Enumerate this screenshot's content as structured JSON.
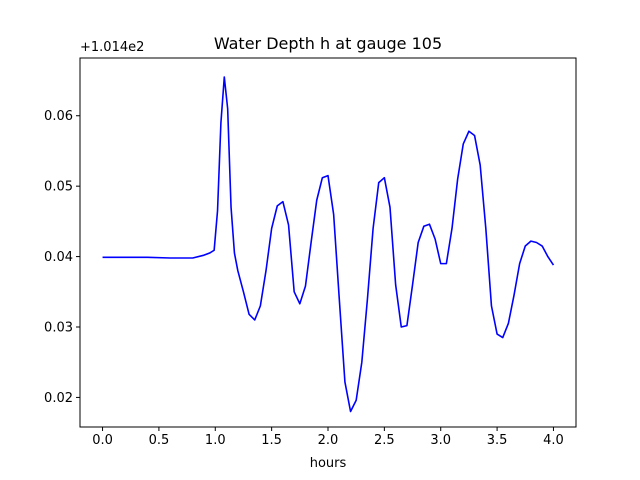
{
  "chart_data": {
    "type": "line",
    "title": "Water Depth h at gauge 105",
    "xlabel": "hours",
    "ylabel": "",
    "y_offset_label": "+1.014e2",
    "y_offset": 101.4,
    "xlim": [
      -0.2,
      4.2
    ],
    "ylim": [
      0.0158,
      0.0682
    ],
    "x_ticks": [
      0.0,
      0.5,
      1.0,
      1.5,
      2.0,
      2.5,
      3.0,
      3.5,
      4.0
    ],
    "x_tick_labels": [
      "0.0",
      "0.5",
      "1.0",
      "1.5",
      "2.0",
      "2.5",
      "3.0",
      "3.5",
      "4.0"
    ],
    "y_ticks": [
      0.02,
      0.03,
      0.04,
      0.05,
      0.06
    ],
    "y_tick_labels": [
      "0.02",
      "0.03",
      "0.04",
      "0.05",
      "0.06"
    ],
    "grid": false,
    "series": [
      {
        "color": "#0000ff",
        "x": [
          0.0,
          0.2,
          0.4,
          0.6,
          0.8,
          0.9,
          0.95,
          0.99,
          1.02,
          1.05,
          1.08,
          1.11,
          1.14,
          1.17,
          1.2,
          1.25,
          1.3,
          1.35,
          1.4,
          1.45,
          1.5,
          1.55,
          1.6,
          1.65,
          1.7,
          1.75,
          1.8,
          1.85,
          1.9,
          1.95,
          2.0,
          2.05,
          2.1,
          2.15,
          2.2,
          2.25,
          2.3,
          2.35,
          2.4,
          2.45,
          2.5,
          2.55,
          2.6,
          2.65,
          2.7,
          2.75,
          2.8,
          2.85,
          2.9,
          2.95,
          3.0,
          3.05,
          3.1,
          3.15,
          3.2,
          3.25,
          3.3,
          3.35,
          3.4,
          3.45,
          3.5,
          3.55,
          3.6,
          3.65,
          3.7,
          3.75,
          3.8,
          3.85,
          3.9,
          3.95,
          4.0
        ],
        "y": [
          0.0399,
          0.0399,
          0.0399,
          0.0398,
          0.0398,
          0.0402,
          0.0405,
          0.0409,
          0.0465,
          0.059,
          0.0655,
          0.061,
          0.047,
          0.0405,
          0.038,
          0.035,
          0.0318,
          0.031,
          0.033,
          0.038,
          0.044,
          0.0472,
          0.0478,
          0.0445,
          0.035,
          0.0333,
          0.0358,
          0.042,
          0.048,
          0.0512,
          0.0515,
          0.046,
          0.034,
          0.0222,
          0.018,
          0.0196,
          0.025,
          0.034,
          0.044,
          0.0505,
          0.0512,
          0.047,
          0.036,
          0.03,
          0.0302,
          0.036,
          0.042,
          0.0443,
          0.0446,
          0.0425,
          0.039,
          0.039,
          0.044,
          0.051,
          0.056,
          0.0578,
          0.0572,
          0.053,
          0.044,
          0.033,
          0.029,
          0.0285,
          0.0305,
          0.0345,
          0.039,
          0.0415,
          0.0422,
          0.042,
          0.0415,
          0.04,
          0.0388
        ]
      }
    ]
  }
}
